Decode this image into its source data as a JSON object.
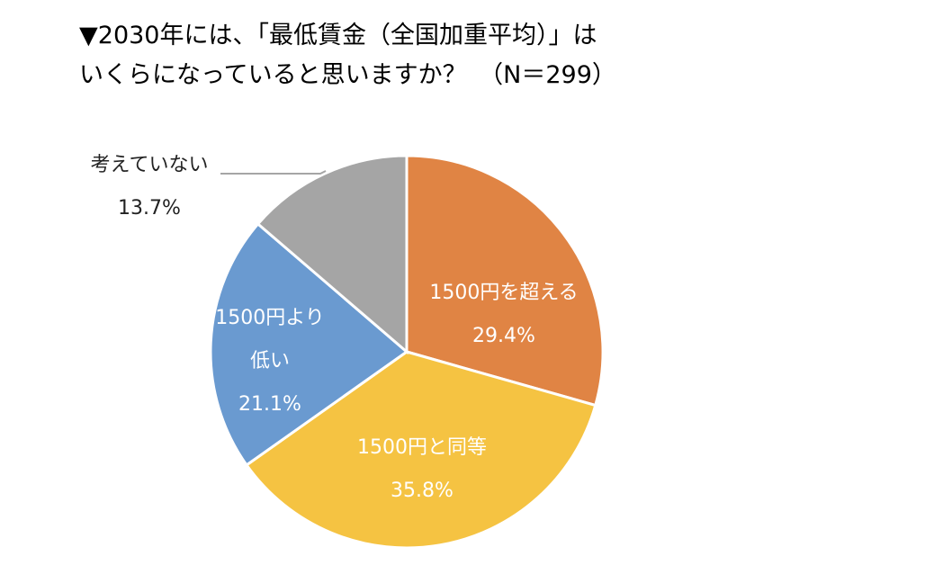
{
  "title_lines": [
    "▼2030年には、「最低賃金（全国加重平均）」は",
    "いくらになっていると思いますか？　（N＝299）"
  ],
  "chart_data": {
    "type": "pie",
    "title": "▼2030年には、「最低賃金（全国加重平均）」はいくらになっていると思いますか？　（N＝299）",
    "start": "12 o'clock, clockwise",
    "slices": [
      {
        "label": "1500円を超える",
        "label_lines": [
          "1500円を超える"
        ],
        "value": 29.4,
        "pct_text": "29.4%",
        "color": "#E08444"
      },
      {
        "label": "1500円と同等",
        "label_lines": [
          "1500円と同等"
        ],
        "value": 35.8,
        "pct_text": "35.8%",
        "color": "#F5C342"
      },
      {
        "label": "1500円より低い",
        "label_lines": [
          "1500円より",
          "低い"
        ],
        "value": 21.1,
        "pct_text": "21.1%",
        "color": "#6A9AD0"
      },
      {
        "label": "考えていない",
        "label_lines": [
          "考えていない"
        ],
        "value": 13.7,
        "pct_text": "13.7%",
        "color": "#A5A5A5"
      }
    ]
  }
}
